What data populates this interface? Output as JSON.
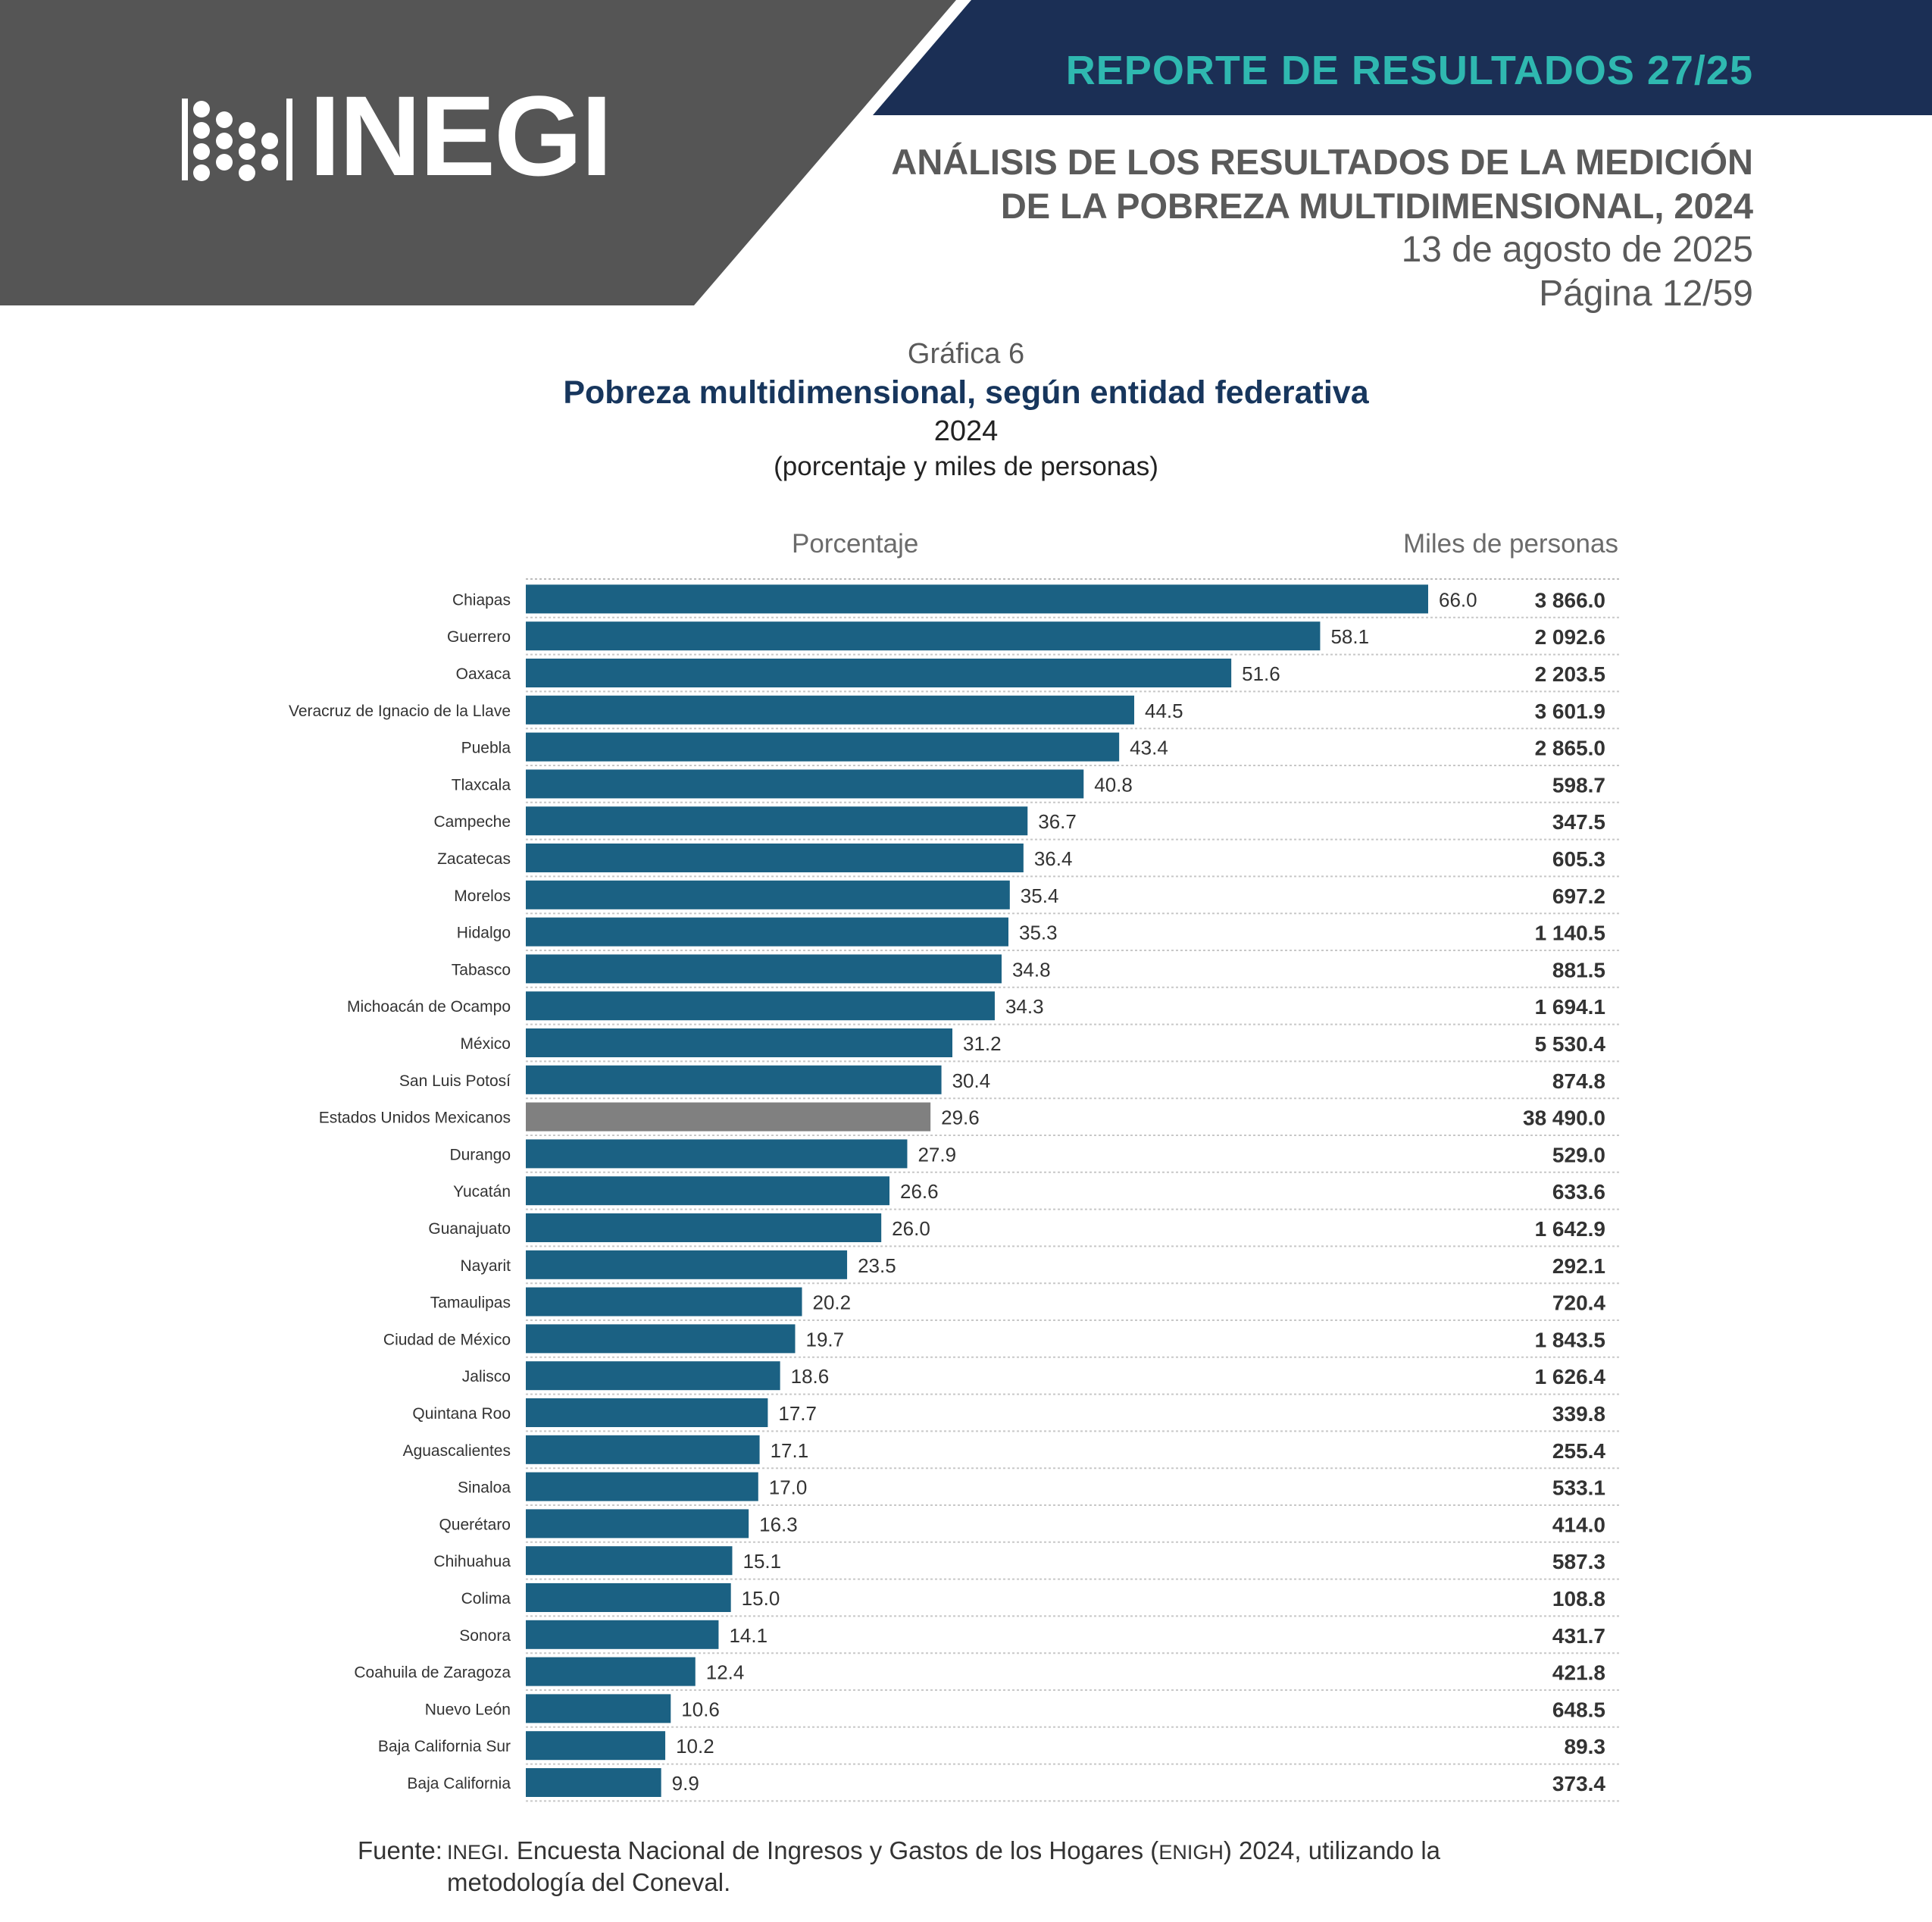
{
  "header": {
    "logo_text": "INEGI",
    "report_tag": "REPORTE DE RESULTADOS 27/25",
    "title_lines": [
      "ANÁLISIS DE LOS RESULTADOS DE LA MEDICIÓN",
      "DE LA POBREZA MULTIDIMENSIONAL, 2024"
    ],
    "date": "13 de agosto de 2025",
    "page": "Página 12/59",
    "colors": {
      "dark_gray": "#555555",
      "navy": "#1b2f55",
      "teal": "#2fb8b0"
    }
  },
  "chart": {
    "caption": "Gráfica 6",
    "title": "Pobreza multidimensional, según entidad federativa",
    "year": "2024",
    "units": "(porcentaje y miles de personas)",
    "col_head_pct": "Porcentaje",
    "col_head_miles": "Miles de personas"
  },
  "chart_data": {
    "type": "bar",
    "orientation": "horizontal",
    "title": "Pobreza multidimensional, según entidad federativa",
    "subtitle": "2024",
    "xlim": [
      0,
      66
    ],
    "grid": false,
    "bar_color": "#1b6183",
    "highlight_color": "#808080",
    "highlight_category": "Estados Unidos Mexicanos",
    "categories": [
      "Chiapas",
      "Guerrero",
      "Oaxaca",
      "Veracruz de Ignacio de la Llave",
      "Puebla",
      "Tlaxcala",
      "Campeche",
      "Zacatecas",
      "Morelos",
      "Hidalgo",
      "Tabasco",
      "Michoacán de Ocampo",
      "México",
      "San Luis Potosí",
      "Estados Unidos Mexicanos",
      "Durango",
      "Yucatán",
      "Guanajuato",
      "Nayarit",
      "Tamaulipas",
      "Ciudad de México",
      "Jalisco",
      "Quintana Roo",
      "Aguascalientes",
      "Sinaloa",
      "Querétaro",
      "Chihuahua",
      "Colima",
      "Sonora",
      "Coahuila de Zaragoza",
      "Nuevo León",
      "Baja California Sur",
      "Baja California"
    ],
    "series": [
      {
        "name": "Porcentaje",
        "values": [
          66.0,
          58.1,
          51.6,
          44.5,
          43.4,
          40.8,
          36.7,
          36.4,
          35.4,
          35.3,
          34.8,
          34.3,
          31.2,
          30.4,
          29.6,
          27.9,
          26.6,
          26.0,
          23.5,
          20.2,
          19.7,
          18.6,
          17.7,
          17.1,
          17.0,
          16.3,
          15.1,
          15.0,
          14.1,
          12.4,
          10.6,
          10.2,
          9.9
        ]
      },
      {
        "name": "Miles de personas",
        "values": [
          3866.0,
          2092.6,
          2203.5,
          3601.9,
          2865.0,
          598.7,
          347.5,
          605.3,
          697.2,
          1140.5,
          881.5,
          1694.1,
          5530.4,
          874.8,
          38490.0,
          529.0,
          633.6,
          1642.9,
          292.1,
          720.4,
          1843.5,
          1626.4,
          339.8,
          255.4,
          533.1,
          414.0,
          587.3,
          108.8,
          431.7,
          421.8,
          648.5,
          89.3,
          373.4
        ]
      }
    ],
    "pct_labels": [
      "66.0",
      "58.1",
      "51.6",
      "44.5",
      "43.4",
      "40.8",
      "36.7",
      "36.4",
      "35.4",
      "35.3",
      "34.8",
      "34.3",
      "31.2",
      "30.4",
      "29.6",
      "27.9",
      "26.6",
      "26.0",
      "23.5",
      "20.2",
      "19.7",
      "18.6",
      "17.7",
      "17.1",
      "17.0",
      "16.3",
      "15.1",
      "15.0",
      "14.1",
      "12.4",
      "10.6",
      "10.2",
      "9.9"
    ],
    "miles_labels": [
      "3 866.0",
      "2 092.6",
      "2 203.5",
      "3 601.9",
      "2 865.0",
      "598.7",
      "347.5",
      "605.3",
      "697.2",
      "1 140.5",
      "881.5",
      "1 694.1",
      "5 530.4",
      "874.8",
      "38 490.0",
      "529.0",
      "633.6",
      "1 642.9",
      "292.1",
      "720.4",
      "1 843.5",
      "1 626.4",
      "339.8",
      "255.4",
      "533.1",
      "414.0",
      "587.3",
      "108.8",
      "431.7",
      "421.8",
      "648.5",
      "89.3",
      "373.4"
    ]
  },
  "source": {
    "label": "Fuente:",
    "org": "INEGI",
    "text_a": ". Encuesta Nacional de Ingresos y Gastos de los Hogares (",
    "survey": "ENIGH",
    "text_b": ") 2024, utilizando la",
    "line2": "metodología del Coneval."
  }
}
